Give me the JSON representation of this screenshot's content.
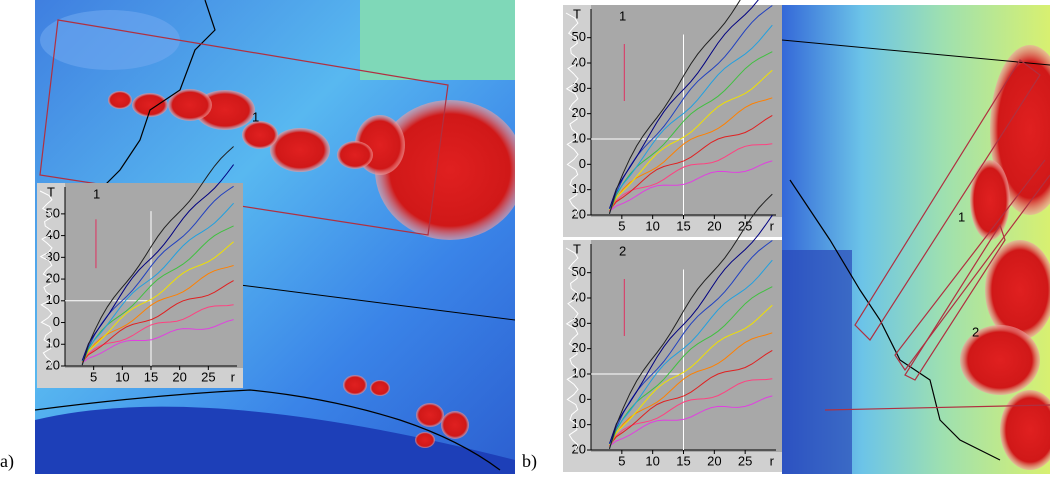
{
  "panels": [
    {
      "label": "a)",
      "map_labels": [
        "1"
      ],
      "insets": [
        {
          "number": "1",
          "y_axis_label": "T",
          "x_axis_label": "r",
          "ylim": [
            55,
            -20
          ],
          "xlim": [
            0,
            30
          ],
          "yticks": [
            50,
            40,
            30,
            20,
            10,
            0,
            {
              "value": -10,
              "label": "10"
            },
            {
              "value": -20,
              "label": "20"
            }
          ],
          "xticks": [
            5,
            10,
            15,
            20,
            25
          ]
        }
      ]
    },
    {
      "label": "b)",
      "map_labels": [
        "1",
        "2"
      ],
      "insets": [
        {
          "number": "1",
          "y_axis_label": "T",
          "x_axis_label": "r",
          "ylim": [
            55,
            -20
          ],
          "xlim": [
            0,
            30
          ],
          "yticks": [
            50,
            40,
            30,
            20,
            10,
            0,
            {
              "value": -10,
              "label": "10"
            },
            {
              "value": -20,
              "label": "20"
            }
          ],
          "xticks": [
            5,
            10,
            15,
            20,
            25
          ]
        },
        {
          "number": "2",
          "y_axis_label": "T",
          "x_axis_label": "r",
          "ylim": [
            55,
            -20
          ],
          "xlim": [
            0,
            30
          ],
          "yticks": [
            50,
            40,
            30,
            20,
            10,
            0,
            {
              "value": -10,
              "label": "10"
            },
            {
              "value": -20,
              "label": "20"
            }
          ],
          "xticks": [
            5,
            10,
            15,
            20,
            25
          ]
        }
      ]
    }
  ]
}
